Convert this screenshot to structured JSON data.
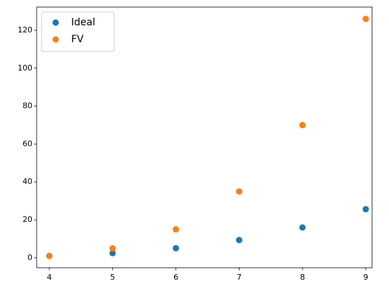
{
  "chart_data": {
    "type": "scatter",
    "x": [
      4,
      5,
      6,
      7,
      8,
      9
    ],
    "series": [
      {
        "name": "Ideal",
        "color": "#1f77b4",
        "values": [
          1,
          2.44,
          5.06,
          9.38,
          16,
          25.63
        ]
      },
      {
        "name": "FV",
        "color": "#ff7f0e",
        "values": [
          1,
          5,
          15,
          35,
          70,
          126
        ]
      }
    ],
    "xlim": [
      3.8,
      9.1
    ],
    "xticks": [
      4,
      5,
      6,
      7,
      8,
      9
    ],
    "ylim": [
      -5.25,
      132.25
    ],
    "yticks": [
      0,
      20,
      40,
      60,
      80,
      100,
      120
    ],
    "grid": false,
    "legend": "upper left"
  }
}
